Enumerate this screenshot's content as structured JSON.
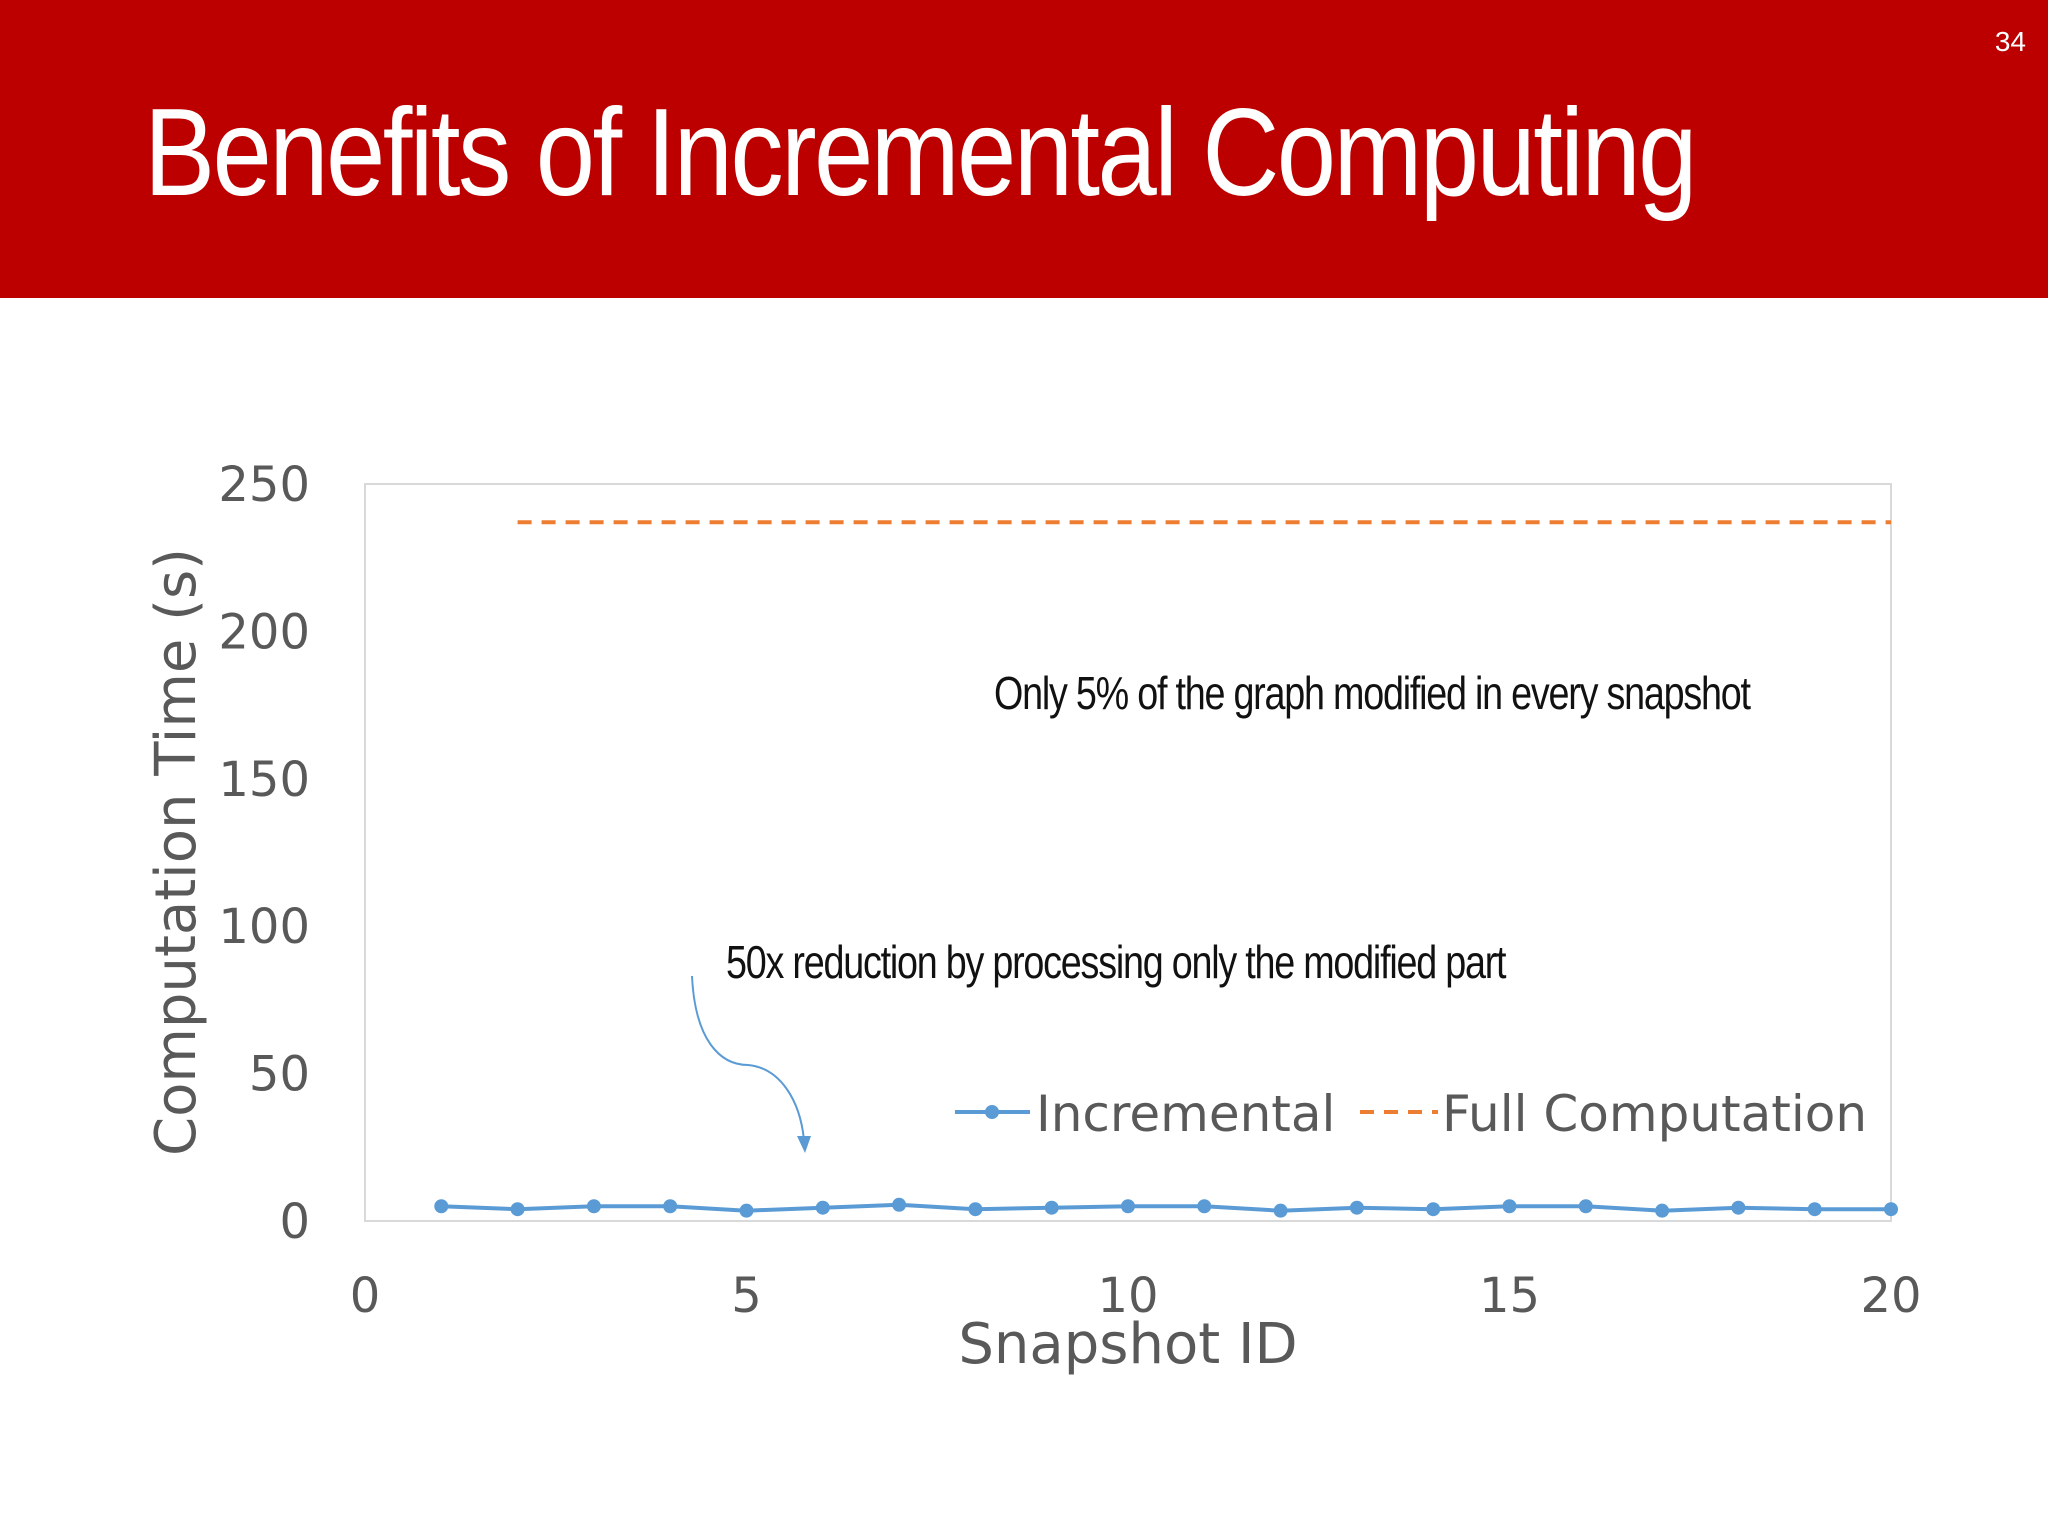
{
  "slide": {
    "title": "Benefits of Incremental Computing",
    "page_number": "34",
    "header_color": "#bc0000"
  },
  "chart_data": {
    "type": "line",
    "xlabel": "Snapshot ID",
    "ylabel": "Computation Time (s)",
    "xlim": [
      0,
      20
    ],
    "ylim": [
      0,
      250
    ],
    "xticks": [
      0,
      5,
      10,
      15,
      20
    ],
    "yticks": [
      0,
      50,
      100,
      150,
      200,
      250
    ],
    "grid": false,
    "legend_position": "bottom-right",
    "series": [
      {
        "name": "Incremental",
        "style": "solid-markers",
        "color": "#5b9bd5",
        "x": [
          1,
          2,
          3,
          4,
          5,
          6,
          7,
          8,
          9,
          10,
          11,
          12,
          13,
          14,
          15,
          16,
          17,
          18,
          19,
          20
        ],
        "values": [
          5,
          4,
          5,
          5,
          3.5,
          4.5,
          5.5,
          4,
          4.5,
          5,
          5,
          3.5,
          4.5,
          4,
          5,
          5,
          3.5,
          4.5,
          4,
          4
        ]
      },
      {
        "name": "Full Computation",
        "style": "dashed",
        "color": "#ed7d31",
        "x": [
          2,
          20
        ],
        "values": [
          237,
          237
        ]
      }
    ],
    "annotations": [
      "Only 5% of the graph modified in every snapshot",
      "50x reduction by processing only the modified part"
    ]
  }
}
